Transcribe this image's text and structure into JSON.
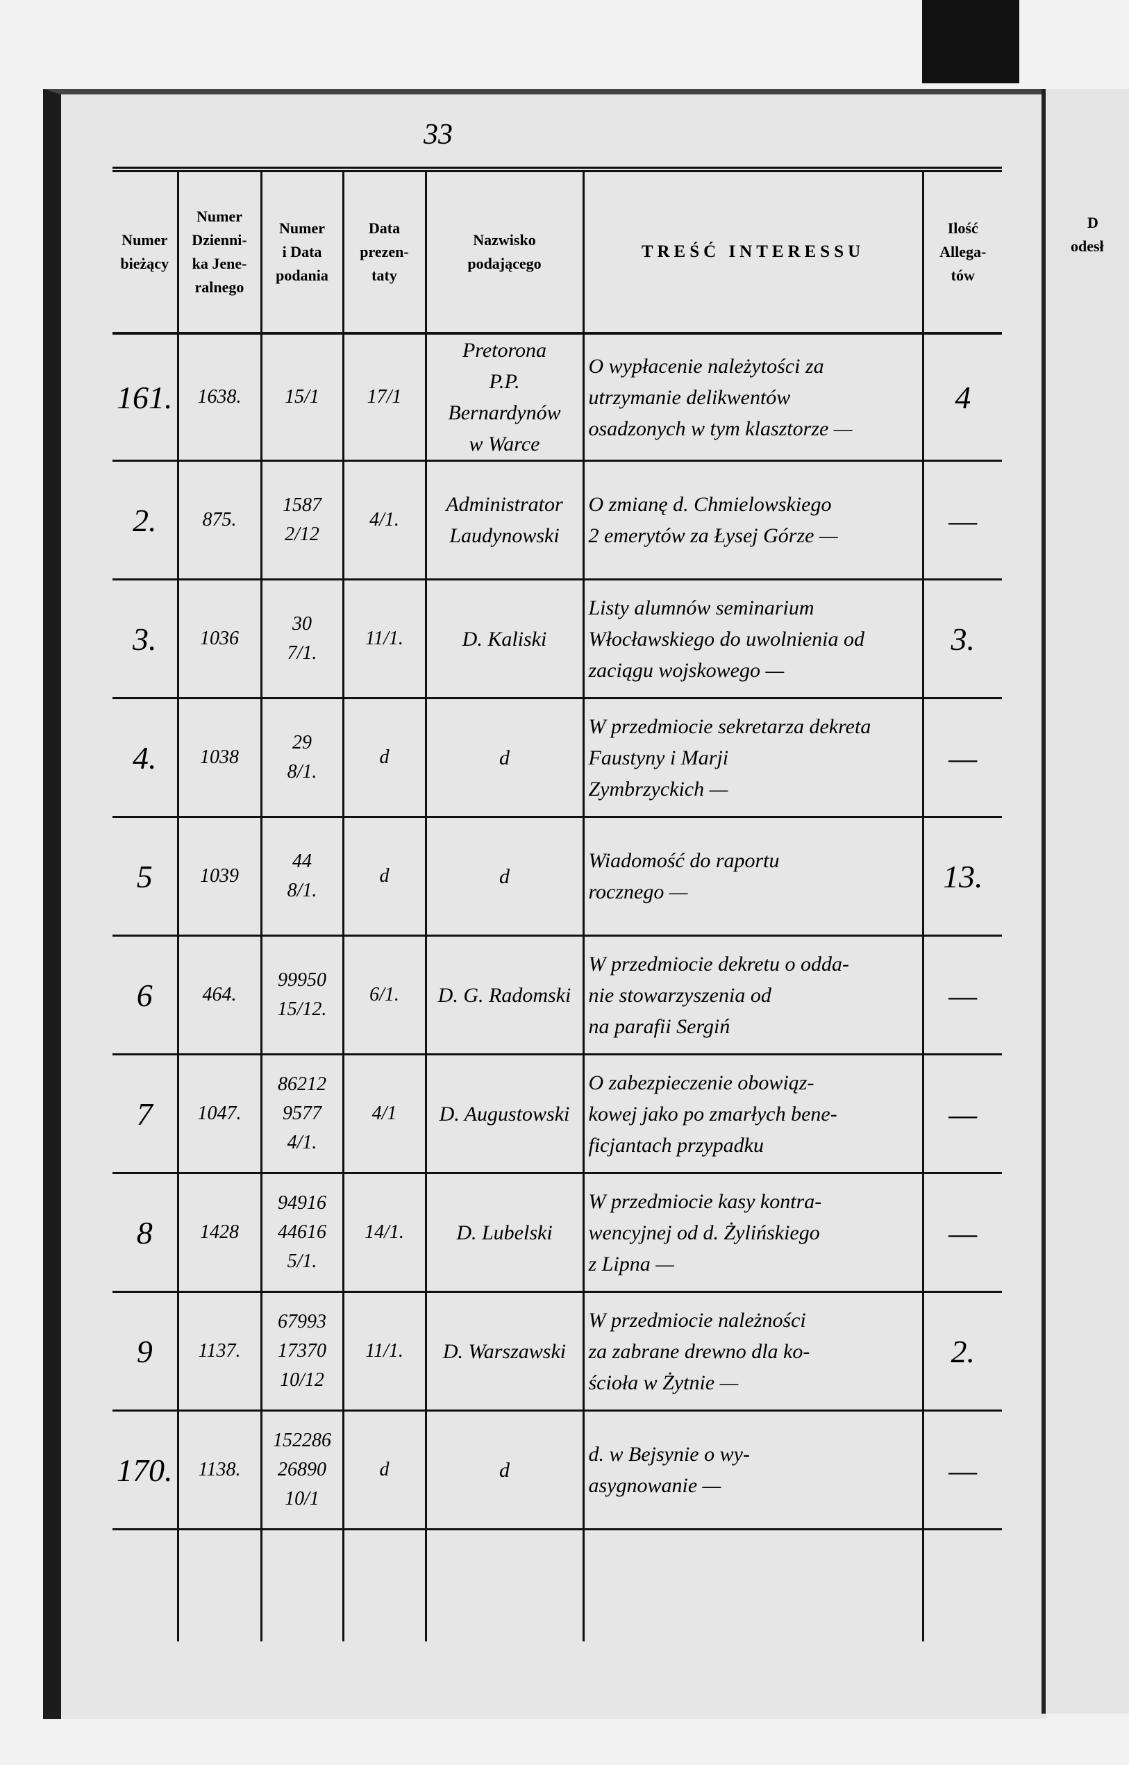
{
  "page_number": "33",
  "table": {
    "header": [
      [
        "Numer",
        "bieżący"
      ],
      [
        "Numer",
        "Dzienni-",
        "ka Jene-",
        "ralnego"
      ],
      [
        "Numer",
        "i Data",
        "podania"
      ],
      [
        "Data",
        "prezen-",
        "taty"
      ],
      [
        "Nazwisko",
        "podającego"
      ],
      [
        "TREŚĆ INTERESSU"
      ],
      [
        "Ilość",
        "Allega-",
        "tów"
      ]
    ],
    "rows": [
      [
        "161.",
        "1638.",
        [
          "15/1"
        ],
        [
          "17/1"
        ],
        [
          "Pretorona",
          "P.P. Bernardynów",
          "w Warce"
        ],
        [
          "O wypłacenie należytości za",
          "utrzymanie delikwentów",
          "osadzonych w tym klasztorze —"
        ],
        "4"
      ],
      [
        "2.",
        "875.",
        [
          "1587",
          "2/12"
        ],
        [
          "4/1."
        ],
        [
          "Administrator",
          "Laudynowski"
        ],
        [
          "O zmianę d. Chmielowskiego",
          "2 emerytów za Łysej Górze —"
        ],
        "—"
      ],
      [
        "3.",
        "1036",
        [
          "30",
          "7/1."
        ],
        [
          "11/1."
        ],
        [
          "D. Kaliski"
        ],
        [
          "Listy alumnów seminarium",
          "Włocławskiego do uwolnienia od",
          "zaciągu wojskowego —"
        ],
        "3."
      ],
      [
        "4.",
        "1038",
        [
          "29",
          "8/1."
        ],
        [
          "d"
        ],
        [
          "d"
        ],
        [
          "W przedmiocie sekretarza dekreta",
          "Faustyny i Marji",
          "Zymbrzyckich —"
        ],
        "—"
      ],
      [
        "5",
        "1039",
        [
          "44",
          "8/1."
        ],
        [
          "d"
        ],
        [
          "d"
        ],
        [
          "Wiadomość do raportu",
          "rocznego —"
        ],
        "13."
      ],
      [
        "6",
        "464.",
        [
          "99950",
          "15/12."
        ],
        [
          "6/1."
        ],
        [
          "D. G. Radomski"
        ],
        [
          "W przedmiocie dekretu o odda-",
          "nie stowarzyszenia od",
          "na parafii Sergiń"
        ],
        "—"
      ],
      [
        "7",
        "1047.",
        [
          "86212",
          "9577 4/1."
        ],
        [
          "4/1"
        ],
        [
          "D. Augustowski"
        ],
        [
          "O zabezpieczenie obowiąz-",
          "kowej jako po zmarłych bene-",
          "ficjantach przypadku"
        ],
        "—"
      ],
      [
        "8",
        "1428",
        [
          "94916",
          "44616",
          "5/1."
        ],
        [
          "14/1."
        ],
        [
          "D. Lubelski"
        ],
        [
          "W przedmiocie kasy kontra-",
          "wencyjnej od d. Żylińskiego",
          "z Lipna —"
        ],
        "—"
      ],
      [
        "9",
        "1137.",
        [
          "67993",
          "17370 10/12"
        ],
        [
          "11/1."
        ],
        [
          "D. Warszawski"
        ],
        [
          "W przedmiocie należności",
          "za zabrane drewno dla ko-",
          "ścioła w Żytnie —"
        ],
        "2."
      ],
      [
        "170.",
        "1138.",
        [
          "152286",
          "26890",
          "10/1"
        ],
        [
          "d"
        ],
        [
          "d"
        ],
        [
          "d. w Bejsynie o wy-",
          "asygnowanie —"
        ],
        "—"
      ]
    ]
  },
  "next_page_fragment": [
    "D",
    "odesł"
  ]
}
